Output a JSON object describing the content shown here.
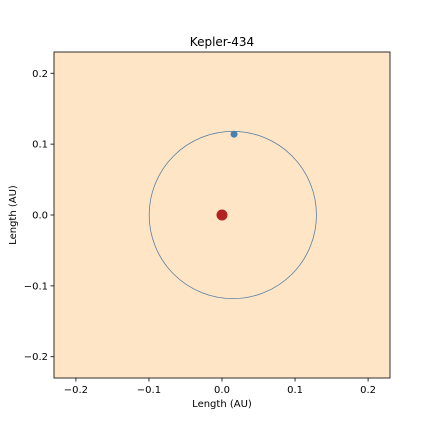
{
  "chart_data": {
    "type": "scatter",
    "title": "Kepler-434",
    "xlabel": "Length (AU)",
    "ylabel": "Length (AU)",
    "xlim": [
      -0.23,
      0.23
    ],
    "ylim": [
      -0.23,
      0.23
    ],
    "xticks": [
      -0.2,
      -0.1,
      0.0,
      0.1,
      0.2
    ],
    "yticks": [
      -0.2,
      -0.1,
      0.0,
      0.1,
      0.2
    ],
    "xtick_labels": [
      "−0.2",
      "−0.1",
      "0.0",
      "0.1",
      "0.2"
    ],
    "ytick_labels": [
      "−0.2",
      "−0.1",
      "0.0",
      "0.1",
      "0.2"
    ],
    "grid": false,
    "background_color": "#fde5c5",
    "orbit": {
      "center": [
        0.0148,
        0.0
      ],
      "radius": 0.1145,
      "color": "#5a7fa3"
    },
    "star": {
      "x": 0.0,
      "y": 0.0,
      "color": "#b22222"
    },
    "planet": {
      "x": 0.0165,
      "y": 0.114,
      "color": "#4a7fb0"
    }
  }
}
